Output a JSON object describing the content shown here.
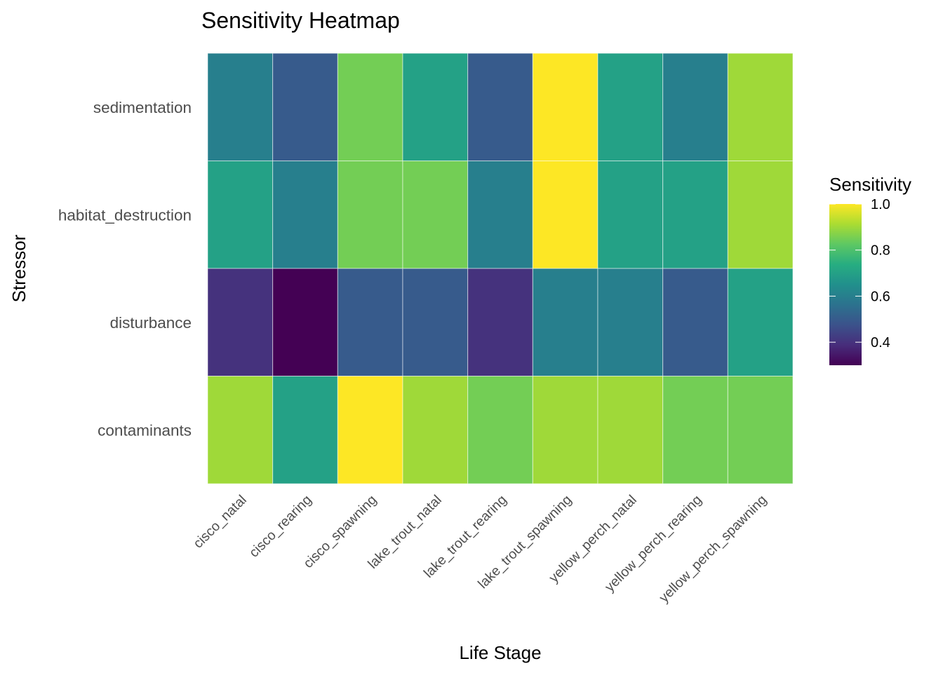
{
  "chart_data": {
    "type": "heatmap",
    "title": "Sensitivity Heatmap",
    "xlabel": "Life Stage",
    "ylabel": "Stressor",
    "x_categories": [
      "cisco_natal",
      "cisco_rearing",
      "cisco_spawning",
      "lake_trout_natal",
      "lake_trout_rearing",
      "lake_trout_spawning",
      "yellow_perch_natal",
      "yellow_perch_rearing",
      "yellow_perch_spawning"
    ],
    "y_categories": [
      "sedimentation",
      "habitat_destruction",
      "disturbance",
      "contaminants"
    ],
    "values": [
      [
        0.6,
        0.5,
        0.85,
        0.7,
        0.5,
        1.0,
        0.7,
        0.6,
        0.9
      ],
      [
        0.7,
        0.6,
        0.85,
        0.85,
        0.6,
        1.0,
        0.7,
        0.7,
        0.9
      ],
      [
        0.4,
        0.3,
        0.5,
        0.5,
        0.4,
        0.6,
        0.6,
        0.5,
        0.7
      ],
      [
        0.9,
        0.7,
        1.0,
        0.9,
        0.85,
        0.9,
        0.9,
        0.85,
        0.85
      ]
    ],
    "colorscale": "viridis",
    "value_range": [
      0.3,
      1.0
    ],
    "legend": {
      "title": "Sensitivity",
      "ticks": [
        0.4,
        0.6,
        0.8,
        1.0
      ],
      "tick_labels": [
        "0.4",
        "0.6",
        "0.8",
        "1.0"
      ],
      "placement": "right"
    },
    "grid": false
  }
}
